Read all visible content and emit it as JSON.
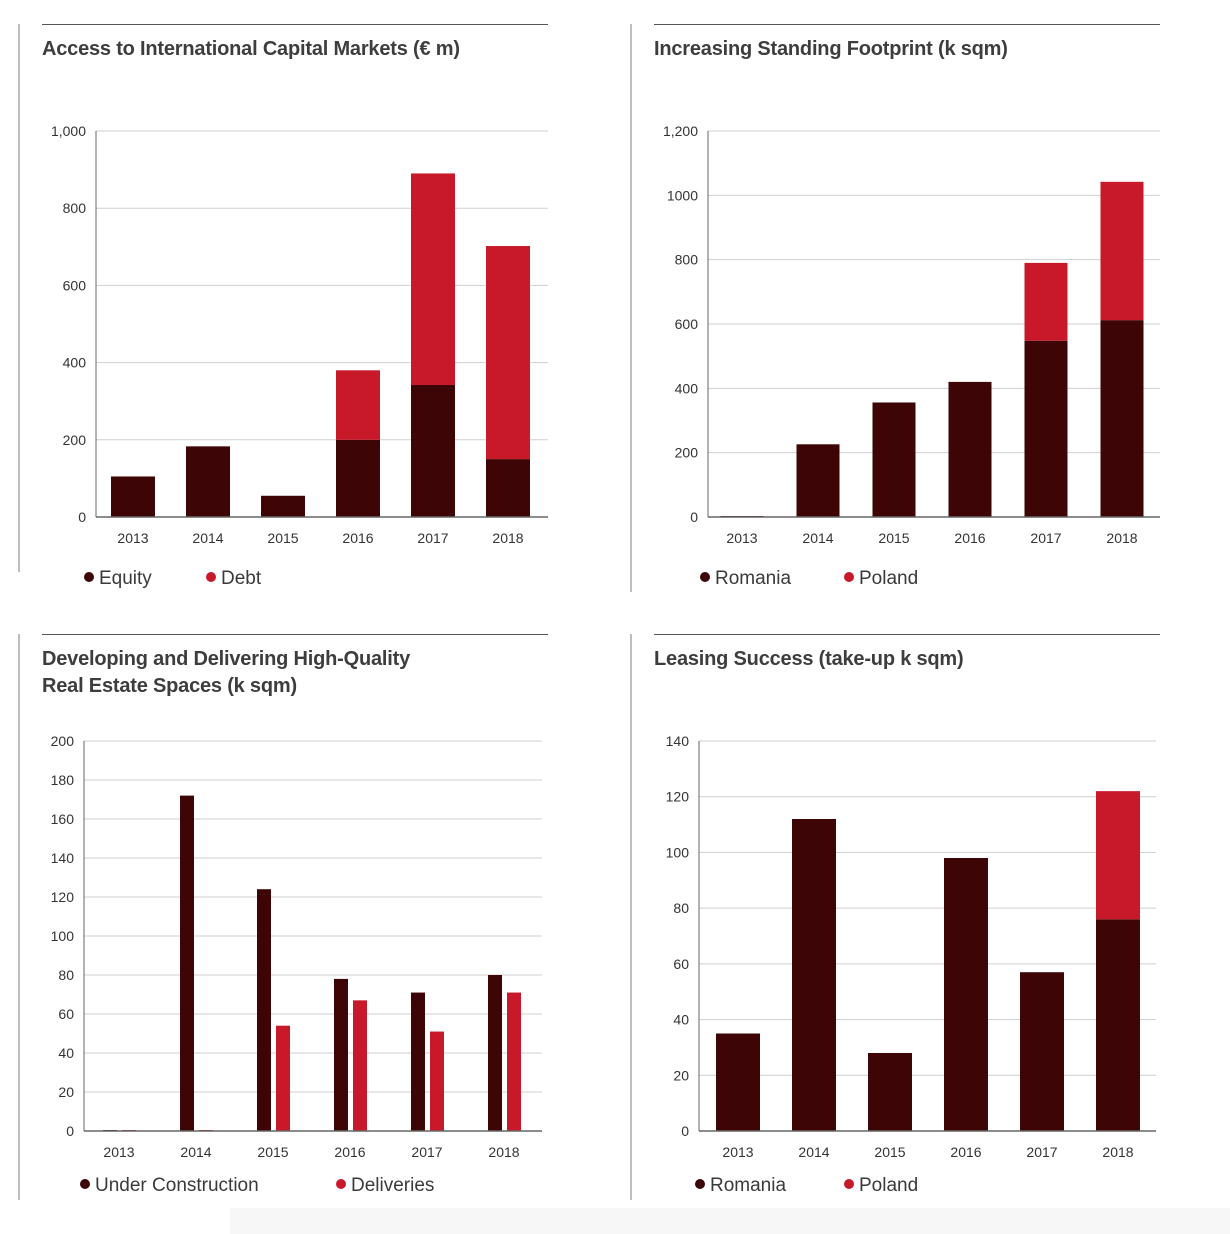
{
  "colors": {
    "dark": "#3d0505",
    "red": "#c8192b",
    "grid": "#cfcfcf",
    "axis": "#666666"
  },
  "panels": [
    {
      "title": "Access to International Capital Markets (€ m)",
      "legend": [
        {
          "label": "Equity",
          "color": "#3d0505"
        },
        {
          "label": "Debt",
          "color": "#c8192b"
        }
      ]
    },
    {
      "title": "Increasing Standing Footprint (k sqm)",
      "legend": [
        {
          "label": "Romania",
          "color": "#3d0505"
        },
        {
          "label": "Poland",
          "color": "#c8192b"
        }
      ]
    },
    {
      "title": "Developing and Delivering High-Quality\nReal Estate Spaces (k sqm)",
      "legend": [
        {
          "label": "Under Construction",
          "color": "#3d0505"
        },
        {
          "label": "Deliveries",
          "color": "#c8192b"
        }
      ]
    },
    {
      "title": "Leasing Success (take-up k sqm)",
      "legend": [
        {
          "label": "Romania",
          "color": "#3d0505"
        },
        {
          "label": "Poland",
          "color": "#c8192b"
        }
      ]
    }
  ],
  "chart_data": [
    {
      "type": "bar",
      "stacked": true,
      "title": "Access to International Capital Markets (€ m)",
      "categories": [
        "2013",
        "2014",
        "2015",
        "2016",
        "2017",
        "2018"
      ],
      "yticks": [
        "0",
        "200",
        "400",
        "600",
        "800",
        "1,000"
      ],
      "ylim": [
        0,
        1000
      ],
      "series": [
        {
          "name": "Equity",
          "color": "#3d0505",
          "values": [
            105,
            183,
            55,
            200,
            342,
            150
          ]
        },
        {
          "name": "Debt",
          "color": "#c8192b",
          "values": [
            0,
            0,
            0,
            180,
            548,
            552
          ]
        }
      ],
      "grid": true,
      "legend_position": "bottom-left"
    },
    {
      "type": "bar",
      "stacked": true,
      "title": "Increasing Standing Footprint (k sqm)",
      "categories": [
        "2013",
        "2014",
        "2015",
        "2016",
        "2017",
        "2018"
      ],
      "yticks": [
        "0",
        "200",
        "400",
        "600",
        "800",
        "1000",
        "1,200"
      ],
      "ylim": [
        0,
        1200
      ],
      "series": [
        {
          "name": "Romania",
          "color": "#3d0505",
          "values": [
            3,
            226,
            356,
            420,
            548,
            612
          ]
        },
        {
          "name": "Poland",
          "color": "#c8192b",
          "values": [
            0,
            0,
            0,
            0,
            242,
            430
          ]
        }
      ],
      "grid": true,
      "legend_position": "bottom-left"
    },
    {
      "type": "bar",
      "stacked": false,
      "title": "Developing and Delivering High-Quality Real Estate Spaces (k sqm)",
      "categories": [
        "2013",
        "2014",
        "2015",
        "2016",
        "2017",
        "2018"
      ],
      "yticks": [
        "0",
        "20",
        "40",
        "60",
        "80",
        "100",
        "120",
        "140",
        "160",
        "180",
        "200"
      ],
      "ylim": [
        0,
        200
      ],
      "series": [
        {
          "name": "Under Construction",
          "color": "#3d0505",
          "values": [
            0.5,
            172,
            124,
            78,
            71,
            80
          ]
        },
        {
          "name": "Deliveries",
          "color": "#c8192b",
          "values": [
            0.5,
            0.5,
            54,
            67,
            51,
            71
          ]
        }
      ],
      "grid": true,
      "legend_position": "bottom-left"
    },
    {
      "type": "bar",
      "stacked": true,
      "title": "Leasing Success (take-up k sqm)",
      "categories": [
        "2013",
        "2014",
        "2015",
        "2016",
        "2017",
        "2018"
      ],
      "yticks": [
        "0",
        "20",
        "40",
        "60",
        "80",
        "100",
        "120",
        "140"
      ],
      "ylim": [
        0,
        140
      ],
      "series": [
        {
          "name": "Romania",
          "color": "#3d0505",
          "values": [
            35,
            112,
            28,
            98,
            57,
            76
          ]
        },
        {
          "name": "Poland",
          "color": "#c8192b",
          "values": [
            0,
            0,
            0,
            0,
            0,
            46
          ]
        }
      ],
      "grid": true,
      "legend_position": "bottom-left"
    }
  ]
}
